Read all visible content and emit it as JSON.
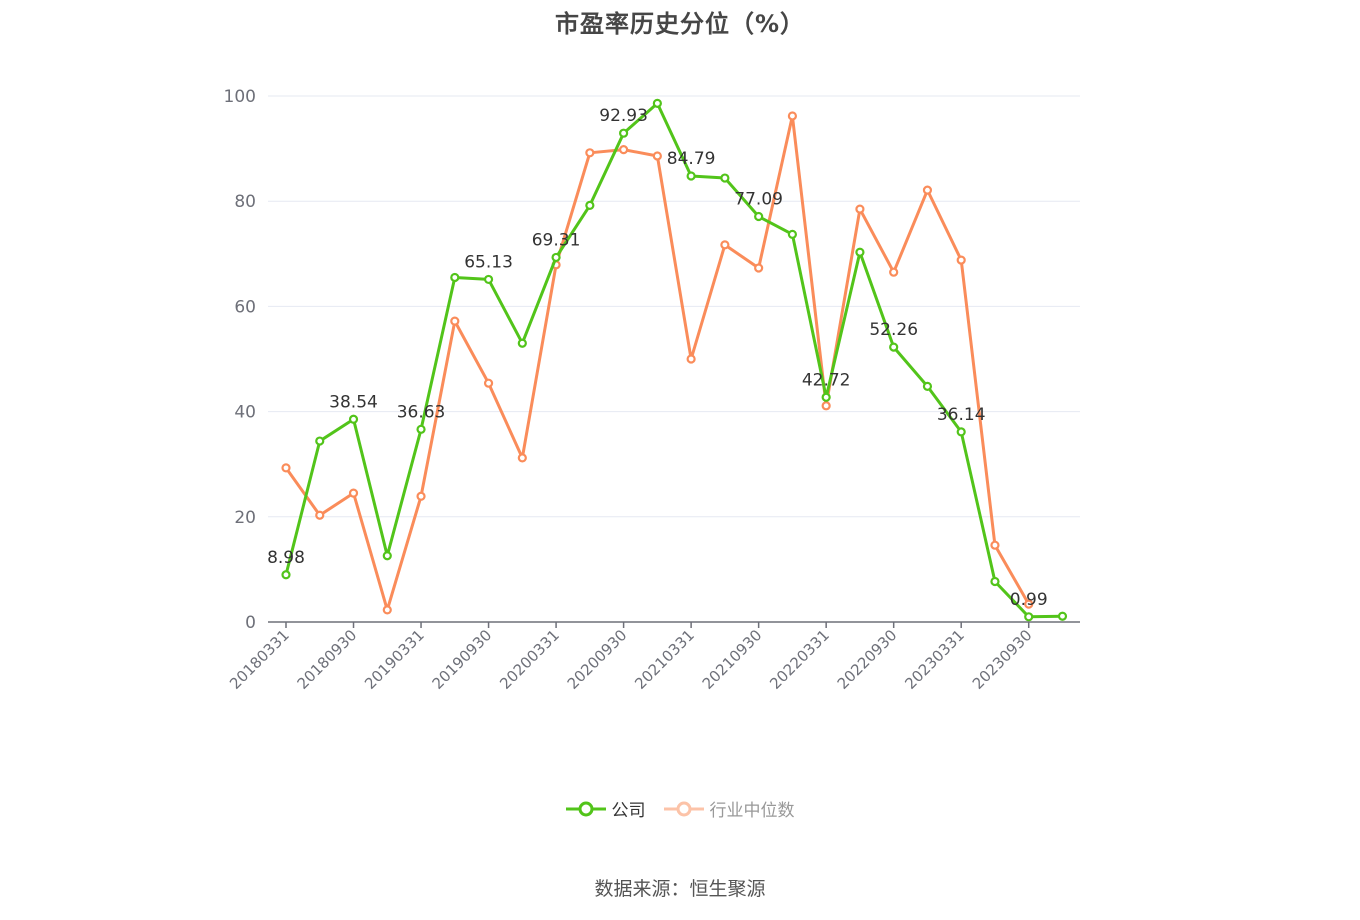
{
  "title": "市盈率历史分位（%）",
  "source": "数据来源：恒生聚源",
  "legend": [
    {
      "label": "公司",
      "color": "#52c41a",
      "active": true
    },
    {
      "label": "行业中位数",
      "color": "#fa8c5a",
      "active": false
    }
  ],
  "colors": {
    "company": "#52c41a",
    "industry": "#fa8c5a",
    "grid": "#e6e9f2",
    "axis": "#6e7079",
    "tick_text": "#6e7079"
  },
  "chart_data": {
    "type": "line",
    "title": "市盈率历史分位（%）",
    "xlabel": "",
    "ylabel": "",
    "ylim": [
      0,
      100
    ],
    "yticks": [
      0,
      20,
      40,
      60,
      80,
      100
    ],
    "grid": true,
    "legend_position": "bottom",
    "x": [
      "20180331",
      "20180630",
      "20180930",
      "20181231",
      "20190331",
      "20190630",
      "20190930",
      "20191231",
      "20200331",
      "20200630",
      "20200930",
      "20201231",
      "20210331",
      "20210630",
      "20210930",
      "20211231",
      "20220331",
      "20220630",
      "20220930",
      "20221231",
      "20230331",
      "20230630",
      "20230930",
      "20231231"
    ],
    "xtick_labels": [
      "20180331",
      "20180930",
      "20190331",
      "20190930",
      "20200331",
      "20200930",
      "20210331",
      "20210930",
      "20220331",
      "20220930",
      "20230331",
      "20230930"
    ],
    "series": [
      {
        "name": "公司",
        "values": [
          8.98,
          34.4,
          38.54,
          12.6,
          36.63,
          65.5,
          65.13,
          53.0,
          69.31,
          79.2,
          92.93,
          98.6,
          84.79,
          84.4,
          77.09,
          73.7,
          42.72,
          70.3,
          52.26,
          44.8,
          36.14,
          7.7,
          0.99,
          1.1
        ]
      },
      {
        "name": "行业中位数",
        "values": [
          29.3,
          20.3,
          24.5,
          2.3,
          23.9,
          57.2,
          45.4,
          31.2,
          67.9,
          89.2,
          89.8,
          88.6,
          50.0,
          71.7,
          67.3,
          96.2,
          41.1,
          78.5,
          66.5,
          82.1,
          68.8,
          14.6,
          3.4,
          null
        ]
      }
    ],
    "annotations": [
      {
        "series": "公司",
        "index": 0,
        "text": "8.98"
      },
      {
        "series": "公司",
        "index": 2,
        "text": "38.54"
      },
      {
        "series": "公司",
        "index": 4,
        "text": "36.63"
      },
      {
        "series": "公司",
        "index": 6,
        "text": "65.13"
      },
      {
        "series": "公司",
        "index": 8,
        "text": "69.31"
      },
      {
        "series": "公司",
        "index": 10,
        "text": "92.93"
      },
      {
        "series": "公司",
        "index": 12,
        "text": "84.79"
      },
      {
        "series": "公司",
        "index": 14,
        "text": "77.09"
      },
      {
        "series": "公司",
        "index": 16,
        "text": "42.72"
      },
      {
        "series": "公司",
        "index": 18,
        "text": "52.26"
      },
      {
        "series": "公司",
        "index": 20,
        "text": "36.14"
      },
      {
        "series": "公司",
        "index": 22,
        "text": "0.99"
      }
    ]
  }
}
